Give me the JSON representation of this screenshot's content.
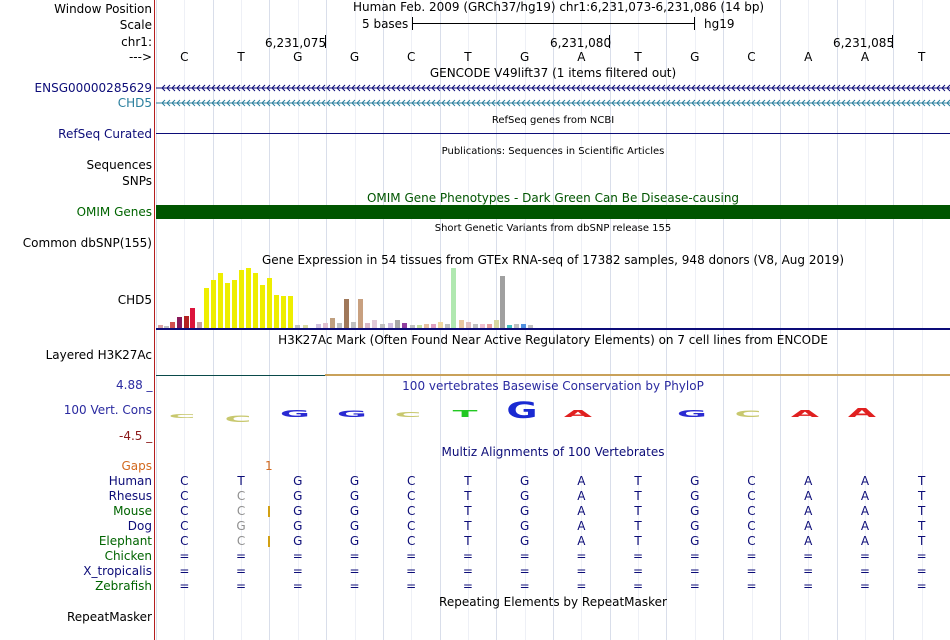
{
  "header": {
    "window_position_label": "Window Position",
    "position_text": "Human Feb. 2009 (GRCh37/hg19)   chr1:6,231,073-6,231,086 (14 bp)",
    "scale_label": "Scale",
    "scale_text": "5 bases",
    "scale_db": "hg19",
    "chrom_label": "chr1:",
    "arrow_label": "--->",
    "ticks": [
      "6,231,075",
      "6,231,080",
      "6,231,085"
    ],
    "bases": [
      "C",
      "T",
      "G",
      "G",
      "C",
      "T",
      "G",
      "A",
      "T",
      "G",
      "C",
      "A",
      "A",
      "T"
    ]
  },
  "tracks": {
    "gencode": {
      "title": "GENCODE V49lift37 (1 items filtered out)",
      "items": [
        "ENSG00000285629",
        "CHD5"
      ],
      "colors": [
        "#0c0c78",
        "#2a7f9e"
      ]
    },
    "refseq": {
      "label": "RefSeq Curated",
      "title": "RefSeq genes from NCBI"
    },
    "publications": {
      "label": "Sequences",
      "title": "Publications: Sequences in Scientific Articles"
    },
    "snps": {
      "label": "SNPs"
    },
    "omim": {
      "label": "OMIM Genes",
      "title": "OMIM Gene Phenotypes - Dark Green Can Be Disease-causing",
      "color": "#005500"
    },
    "dbsnp": {
      "label": "Common dbSNP(155)",
      "title": "Short Genetic Variants from dbSNP release 155"
    },
    "gtex": {
      "label": "CHD5",
      "title": "Gene Expression in 54 tissues from GTEx RNA-seq of 17382 samples, 948 donors (V8, Aug 2019)"
    },
    "h3k27ac": {
      "label": "Layered H3K27Ac",
      "title": "H3K27Ac Mark (Often Found Near Active Regulatory Elements) on 7 cell lines from ENCODE"
    },
    "conservation": {
      "label": "100 Vert. Cons",
      "max": "4.88 _",
      "min": "-4.5 _",
      "title": "100 vertebrates Basewise Conservation by PhyloP"
    },
    "multiz": {
      "title": "Multiz Alignments of 100 Vertebrates",
      "gaps_label": "Gaps",
      "gap_marker": "1",
      "species": [
        {
          "name": "Human",
          "seq": [
            "C",
            "T",
            "G",
            "G",
            "C",
            "T",
            "G",
            "A",
            "T",
            "G",
            "C",
            "A",
            "A",
            "T"
          ]
        },
        {
          "name": "Rhesus",
          "seq": [
            "C",
            "C",
            "G",
            "G",
            "C",
            "T",
            "G",
            "A",
            "T",
            "G",
            "C",
            "A",
            "A",
            "T"
          ]
        },
        {
          "name": "Mouse",
          "seq": [
            "C",
            "C",
            "G",
            "G",
            "C",
            "T",
            "G",
            "A",
            "T",
            "G",
            "C",
            "A",
            "A",
            "T"
          ]
        },
        {
          "name": "Dog",
          "seq": [
            "C",
            "G",
            "G",
            "G",
            "C",
            "T",
            "G",
            "A",
            "T",
            "G",
            "C",
            "A",
            "A",
            "T"
          ]
        },
        {
          "name": "Elephant",
          "seq": [
            "C",
            "C",
            "G",
            "G",
            "C",
            "T",
            "G",
            "A",
            "T",
            "G",
            "C",
            "A",
            "A",
            "T"
          ]
        },
        {
          "name": "Chicken",
          "seq": [
            "=",
            "=",
            "=",
            "=",
            "=",
            "=",
            "=",
            "=",
            "=",
            "=",
            "=",
            "=",
            "=",
            "="
          ]
        },
        {
          "name": "X_tropicalis",
          "seq": [
            "=",
            "=",
            "=",
            "=",
            "=",
            "=",
            "=",
            "=",
            "=",
            "=",
            "=",
            "=",
            "=",
            "="
          ]
        },
        {
          "name": "Zebrafish",
          "seq": [
            "=",
            "=",
            "=",
            "=",
            "=",
            "=",
            "=",
            "=",
            "=",
            "=",
            "=",
            "=",
            "=",
            "="
          ]
        }
      ]
    },
    "repeatmasker": {
      "label": "RepeatMasker",
      "title": "Repeating Elements by RepeatMasker"
    }
  },
  "colors": {
    "label_blue": "#0c0c78",
    "label_green": "#006400",
    "cons_blue": "#2a2aa0",
    "gaps_orange": "#d2691e",
    "separator": "#b41e1e"
  }
}
